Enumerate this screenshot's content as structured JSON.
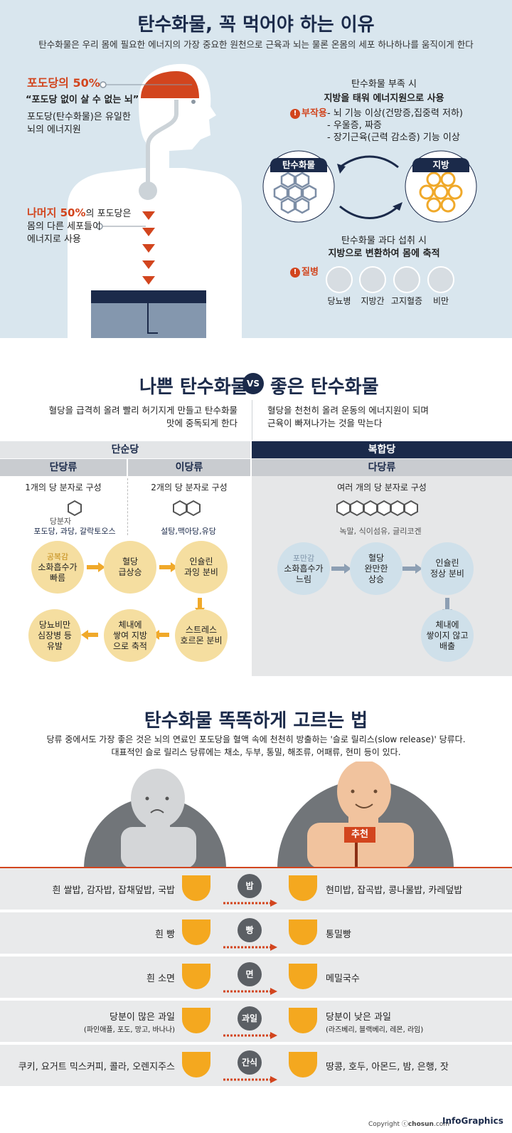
{
  "section1": {
    "title": "탄수화물, 꼭 먹어야 하는 이유",
    "subtitle": "탄수화물은 우리 몸에 필요한 에너지의 가장 중요한 원천으로 근육과 뇌는 물론 온몸의 세포 하나하나를 움직이게 한다",
    "brain_pct": "포도당의 50%",
    "brain_quote": "“포도당 없이 살 수 없는 뇌”",
    "brain_desc1": "포도당(탄수화물)은 유일한",
    "brain_desc2": "뇌의 에너지원",
    "rest_red": "나머지 50%",
    "rest_tail": "의 포도당은",
    "rest_desc1": "몸의 다른 세포들이",
    "rest_desc2": "에너지로 사용",
    "lack_title": "탄수화물 부족 시",
    "lack_bold": "지방을 태워 에너지원으로 사용",
    "side_label": "부작용",
    "side1": "- 뇌 기능 이상(건망증,집중력 저하)",
    "side2": "- 우울증, 짜증",
    "side3": "- 장기근육(근력 감소증) 기능 이상",
    "carb_tag": "탄수화물",
    "fat_tag": "지방",
    "over_title": "탄수화물 과다 섭취 시",
    "over_bold": "지방으로 변환하여 몸에 축적",
    "disease_label": "질병",
    "diseases": [
      "당뇨병",
      "지방간",
      "고지혈증",
      "비만"
    ]
  },
  "section2": {
    "title_left": "나쁜 탄수화물",
    "vs": "VS",
    "title_right": "좋은 탄수화물",
    "desc_left1": "혈당을 급격히 올려 빨리 허기지게 만들고 탄수화물",
    "desc_left2": "맛에 중독되게 한다",
    "desc_right1": "혈당을 천천히 올려 운동의 에너지원이 되며",
    "desc_right2": "근육이 빠져나가는 것을 막는다",
    "simple": "단순당",
    "complex": "복합당",
    "mono": "단당류",
    "di": "이당류",
    "poly": "다당류",
    "mono_desc": "1개의 당 분자로 구성",
    "di_desc": "2개의 당 분자로 구성",
    "poly_desc": "여러 개의 당 분자로 구성",
    "mono_mol": "당분자",
    "mono_ex": "포도당, 과당, 갈락토오스",
    "di_ex": "설탕,맥아당,유당",
    "poly_ex": "녹말, 식이섬유, 글리코겐",
    "bad_flow": [
      {
        "top": "공복감",
        "l1": "소화흡수가",
        "l2": "빠름"
      },
      {
        "top": "",
        "l1": "혈당",
        "l2": "급상승"
      },
      {
        "top": "",
        "l1": "인슐린",
        "l2": "과잉 분비"
      },
      {
        "top": "",
        "l1": "스트레스",
        "l2": "호르몬 분비"
      },
      {
        "top": "체내에",
        "l1": "쌓여 지방",
        "l2": "으로 축적"
      },
      {
        "top": "당뇨비만",
        "l1": "심장병 등",
        "l2": "유발"
      }
    ],
    "good_flow": [
      {
        "top": "포만감",
        "l1": "소화흡수가",
        "l2": "느림"
      },
      {
        "top": "혈당",
        "l1": "완만한",
        "l2": "상승"
      },
      {
        "top": "",
        "l1": "인슐린",
        "l2": "정상 분비"
      },
      {
        "top": "체내에",
        "l1": "쌓이지 않고",
        "l2": "배출"
      }
    ]
  },
  "section3": {
    "title": "탄수화물 똑똑하게 고르는 법",
    "desc1": "당류 중에서도 가장 좋은 것은 뇌의 연료인 포도당을 혈액 속에 천천히 방출하는 '슬로 릴리스(slow release)' 당류다.",
    "desc2": "대표적인 슬로 릴리스 당류에는 채소, 두부, 통밀, 해조류, 어패류, 현미 등이 있다.",
    "recommend": "추천",
    "rows": [
      {
        "cat": "밥",
        "bad": "흰 쌀밥, 감자밥, 잡채덮밥, 국밥",
        "bad_sub": "",
        "good": "현미밥, 잡곡밥, 콩나물밥, 카레덮밥",
        "good_sub": ""
      },
      {
        "cat": "빵",
        "bad": "흰 빵",
        "bad_sub": "",
        "good": "통밀빵",
        "good_sub": ""
      },
      {
        "cat": "면",
        "bad": "흰 소면",
        "bad_sub": "",
        "good": "메밀국수",
        "good_sub": ""
      },
      {
        "cat": "과일",
        "bad": "당분이 많은 과일",
        "bad_sub": "(파인애플, 포도, 망고, 바나나)",
        "good": "당분이 낮은 과일",
        "good_sub": "(라즈베리, 블랙베리, 레몬, 라임)"
      },
      {
        "cat": "간식",
        "bad": "쿠키, 요거트 믹스커피, 콜라, 오렌지주스",
        "bad_sub": "",
        "good": "땅콩, 호두, 아몬드, 밤, 은행, 잣",
        "good_sub": ""
      }
    ]
  },
  "footer": {
    "copyright": "Copyright ⓒ",
    "brand": "chosun",
    "dotcom": ".com",
    "infographics": "InfoGraphics"
  }
}
